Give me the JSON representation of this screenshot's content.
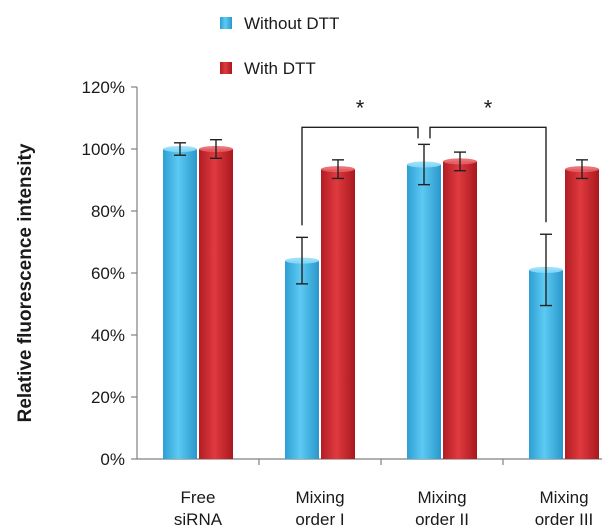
{
  "chart_data": {
    "type": "bar",
    "categories": [
      [
        "Free",
        "siRNA"
      ],
      [
        "Mixing",
        "order I"
      ],
      [
        "Mixing",
        "order II"
      ],
      [
        "Mixing",
        "order III"
      ]
    ],
    "series": [
      {
        "name": "Without DTT",
        "color": "#3cb4e5",
        "values": [
          100,
          64,
          95,
          61
        ],
        "errors": [
          2,
          7.5,
          6.5,
          11.5
        ]
      },
      {
        "name": "With DTT",
        "color": "#c8232a",
        "values": [
          100,
          93.5,
          96,
          93.5
        ],
        "errors": [
          3,
          3,
          3,
          3
        ]
      }
    ],
    "ylabel": "Relative fluorescence intensity",
    "ylim": [
      0,
      120
    ],
    "yticks": [
      "0%",
      "20%",
      "40%",
      "60%",
      "80%",
      "100%",
      "120%"
    ],
    "legend_position": "top",
    "significance": [
      {
        "between": [
          "Mixing order I / Without DTT",
          "Mixing order II / Without DTT"
        ],
        "label": "*"
      },
      {
        "between": [
          "Mixing order II / Without DTT",
          "Mixing order III / Without DTT"
        ],
        "label": "*"
      }
    ],
    "grid": false
  }
}
